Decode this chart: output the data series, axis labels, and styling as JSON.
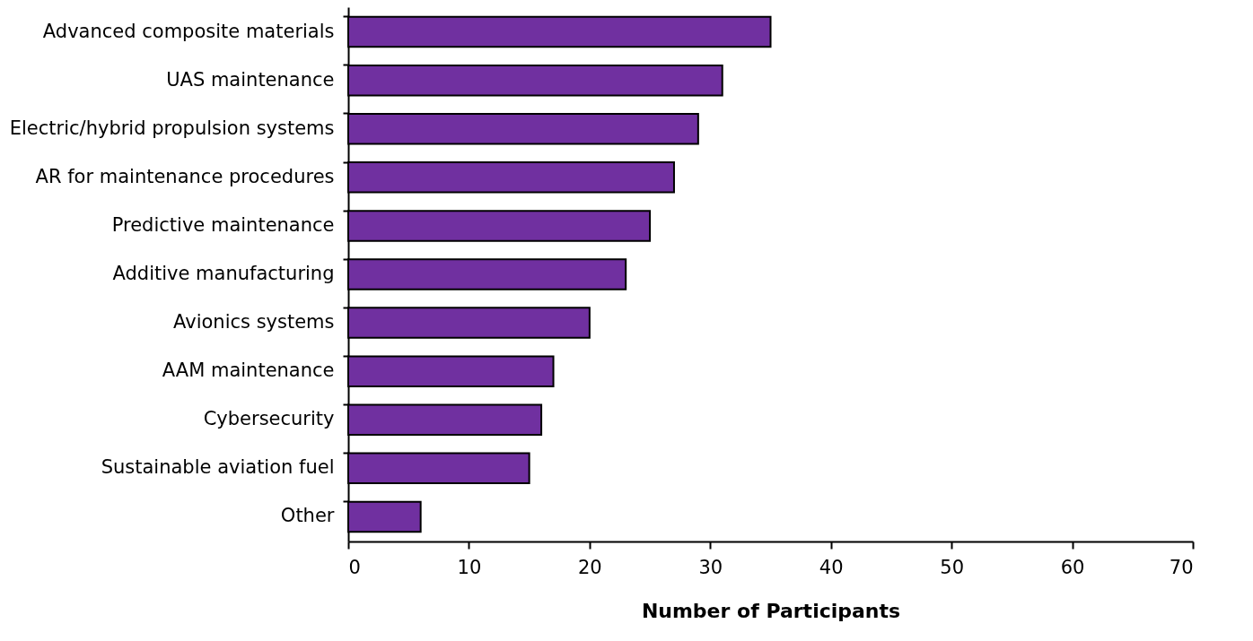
{
  "chart_data": {
    "type": "bar",
    "orientation": "horizontal",
    "xlabel": "Number of Participants",
    "categories": [
      "Advanced composite materials",
      "UAS maintenance",
      "Electric/hybrid propulsion systems",
      "AR for maintenance procedures",
      "Predictive maintenance",
      "Additive manufacturing ",
      "Avionics systems",
      "AAM maintenance",
      "Cybersecurity",
      "Sustainable aviation fuel",
      "Other"
    ],
    "values": [
      35,
      31,
      29,
      27,
      25,
      23,
      20,
      17,
      16,
      15,
      6
    ],
    "color": "#7030a0",
    "xlim": [
      0,
      70
    ],
    "xticks": [
      0,
      10,
      20,
      30,
      40,
      50,
      60,
      70
    ],
    "grid": false
  }
}
